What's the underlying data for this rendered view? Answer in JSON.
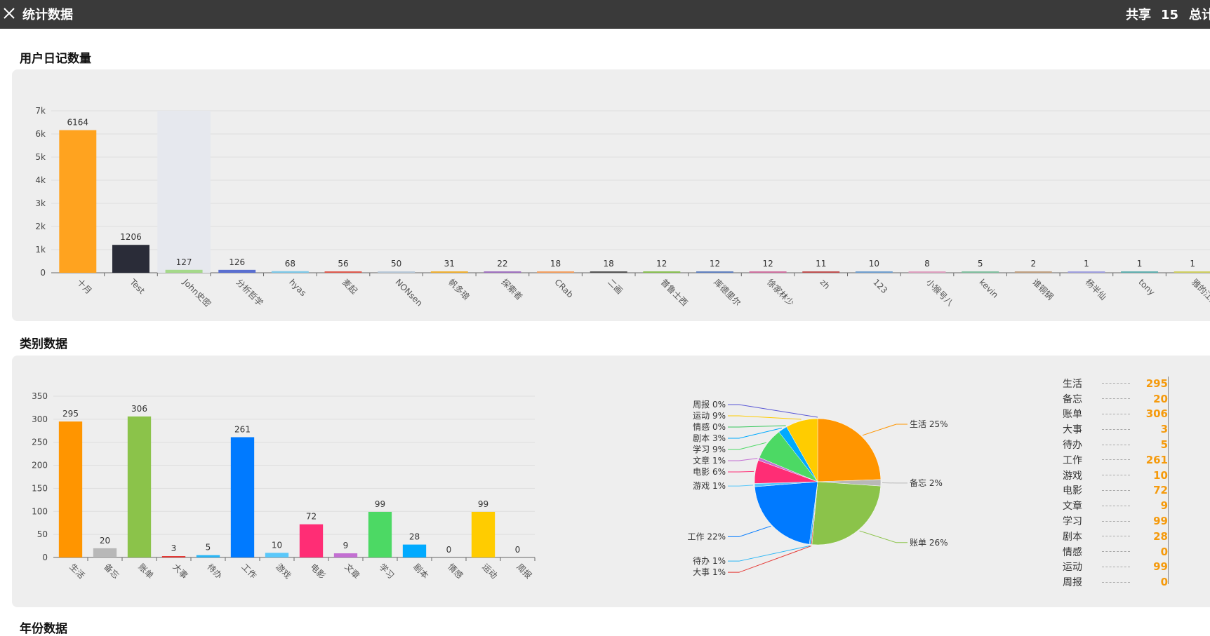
{
  "header": {
    "title": "统计数据",
    "share_label": "共享",
    "share_count": "15",
    "total_label": "总计"
  },
  "sections": {
    "user_diary_title": "用户日记数量",
    "category_title": "类别数据",
    "year_title": "年份数据"
  },
  "chart_data": [
    {
      "type": "bar",
      "ylim": [
        0,
        7000
      ],
      "yticks": [
        "0",
        "1k",
        "2k",
        "3k",
        "4k",
        "5k",
        "6k",
        "7k"
      ],
      "categories": [
        "十月",
        "Test",
        "John史密",
        "分析哲学",
        "hyas",
        "麦起",
        "NONsen",
        "帆多琅",
        "探索者",
        "CRab",
        "二画",
        "普鲁士西",
        "库德里尔",
        "徐家林少",
        "zh",
        "123",
        "小猴号八",
        "kevin",
        "谁铜锅",
        "杨半仙",
        "tony",
        "雅的江墨"
      ],
      "values": [
        6164,
        1206,
        127,
        126,
        68,
        56,
        50,
        31,
        22,
        18,
        18,
        12,
        12,
        12,
        11,
        10,
        8,
        5,
        2,
        1,
        1,
        1
      ],
      "colors": [
        "#ffa31f",
        "#2a2c38",
        "#a5d98a",
        "#5a6fd0",
        "#7ec8e8",
        "#e05a4e",
        "#b8c8d8",
        "#f0b030",
        "#a070c0",
        "#f4a060",
        "#555555",
        "#88c050",
        "#6080c0",
        "#d070a0",
        "#c05050",
        "#70a0d0",
        "#e0a0c0",
        "#80c0a0",
        "#c0a080",
        "#a0a0e0",
        "#60b0b0",
        "#d0d060"
      ],
      "highlight_index": 2
    },
    {
      "type": "bar",
      "ylim": [
        0,
        350
      ],
      "yticks": [
        "0",
        "50",
        "100",
        "150",
        "200",
        "250",
        "300",
        "350"
      ],
      "categories": [
        "生活",
        "备忘",
        "账单",
        "大事",
        "待办",
        "工作",
        "游戏",
        "电影",
        "文章",
        "学习",
        "剧本",
        "情感",
        "运动",
        "周报"
      ],
      "values": [
        295,
        20,
        306,
        3,
        5,
        261,
        10,
        72,
        9,
        99,
        28,
        0,
        99,
        0
      ],
      "colors": [
        "#ff9500",
        "#b8b8b8",
        "#8bc34a",
        "#e53935",
        "#29b6f6",
        "#007aff",
        "#5ac8fa",
        "#ff2d75",
        "#c36fd2",
        "#4cd964",
        "#00aaff",
        "#888888",
        "#ffcc00",
        "#777777"
      ]
    },
    {
      "type": "pie",
      "slices": [
        {
          "label": "生活",
          "percent": "25%",
          "value": 295,
          "color": "#ff9500"
        },
        {
          "label": "备忘",
          "percent": "2%",
          "value": 20,
          "color": "#b8b8b8"
        },
        {
          "label": "账单",
          "percent": "26%",
          "value": 306,
          "color": "#8bc34a"
        },
        {
          "label": "大事",
          "percent": "1%",
          "value": 3,
          "color": "#e53935"
        },
        {
          "label": "待办",
          "percent": "1%",
          "value": 5,
          "color": "#29b6f6"
        },
        {
          "label": "工作",
          "percent": "22%",
          "value": 261,
          "color": "#007aff"
        },
        {
          "label": "游戏",
          "percent": "1%",
          "value": 10,
          "color": "#5ac8fa"
        },
        {
          "label": "电影",
          "percent": "6%",
          "value": 72,
          "color": "#ff2d75"
        },
        {
          "label": "文章",
          "percent": "1%",
          "value": 9,
          "color": "#c36fd2"
        },
        {
          "label": "学习",
          "percent": "9%",
          "value": 99,
          "color": "#4cd964"
        },
        {
          "label": "剧本",
          "percent": "3%",
          "value": 28,
          "color": "#00aaff"
        },
        {
          "label": "情感",
          "percent": "0%",
          "value": 0,
          "color": "#34c759"
        },
        {
          "label": "运动",
          "percent": "9%",
          "value": 99,
          "color": "#ffcc00"
        },
        {
          "label": "周报",
          "percent": "0%",
          "value": 0,
          "color": "#5856d6"
        }
      ]
    }
  ],
  "legend": [
    {
      "label": "生活",
      "value": "295"
    },
    {
      "label": "备忘",
      "value": "20"
    },
    {
      "label": "账单",
      "value": "306"
    },
    {
      "label": "大事",
      "value": "3"
    },
    {
      "label": "待办",
      "value": "5"
    },
    {
      "label": "工作",
      "value": "261"
    },
    {
      "label": "游戏",
      "value": "10"
    },
    {
      "label": "电影",
      "value": "72"
    },
    {
      "label": "文章",
      "value": "9"
    },
    {
      "label": "学习",
      "value": "99"
    },
    {
      "label": "剧本",
      "value": "28"
    },
    {
      "label": "情感",
      "value": "0"
    },
    {
      "label": "运动",
      "value": "99"
    },
    {
      "label": "周报",
      "value": "0"
    }
  ]
}
